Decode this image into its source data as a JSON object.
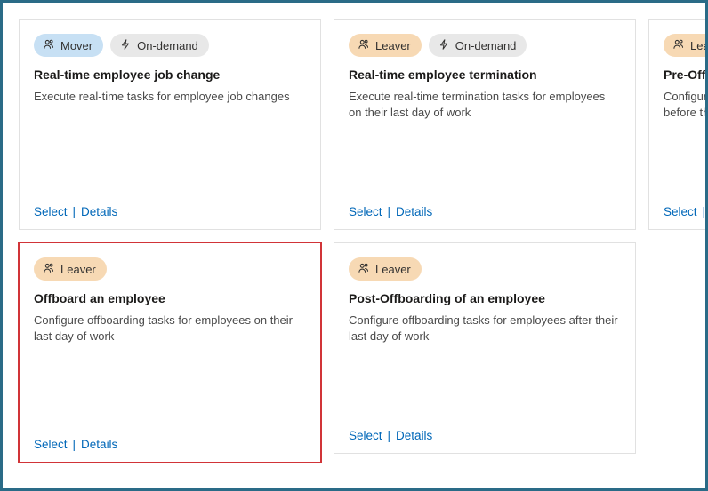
{
  "colors": {
    "frame_border": "#2a6b87",
    "card_border": "#e1e1e1",
    "highlight_border": "#d13438",
    "link": "#0067b8",
    "text_primary": "#1b1a19",
    "text_secondary": "#4a4a4a",
    "tag_mover_bg": "#c7e0f4",
    "tag_leaver_bg": "#f7d9b4",
    "tag_ondemand_bg": "#e8e8e8"
  },
  "tag_labels": {
    "mover": "Mover",
    "leaver": "Leaver",
    "ondemand": "On-demand"
  },
  "action_labels": {
    "select": "Select",
    "details": "Details",
    "sep": "|"
  },
  "cards": [
    {
      "tags": [
        "mover",
        "ondemand"
      ],
      "title": "Real-time employee job change",
      "desc": "Execute real-time tasks for employee job changes",
      "highlighted": false
    },
    {
      "tags": [
        "leaver",
        "ondemand"
      ],
      "title": "Real-time employee termination",
      "desc": "Execute real-time termination tasks for employees on their last day of work",
      "highlighted": false
    },
    {
      "tags": [
        "leaver"
      ],
      "title": "Pre-Offboarding of an employee",
      "desc": "Configure pre-offboarding tasks for employees before their last day of work",
      "highlighted": false
    },
    {
      "tags": [
        "leaver"
      ],
      "title": "Offboard an employee",
      "desc": "Configure offboarding tasks for employees on their last day of work",
      "highlighted": true
    },
    {
      "tags": [
        "leaver"
      ],
      "title": "Post-Offboarding of an employee",
      "desc": "Configure offboarding tasks for employees after their last day of work",
      "highlighted": false
    }
  ]
}
